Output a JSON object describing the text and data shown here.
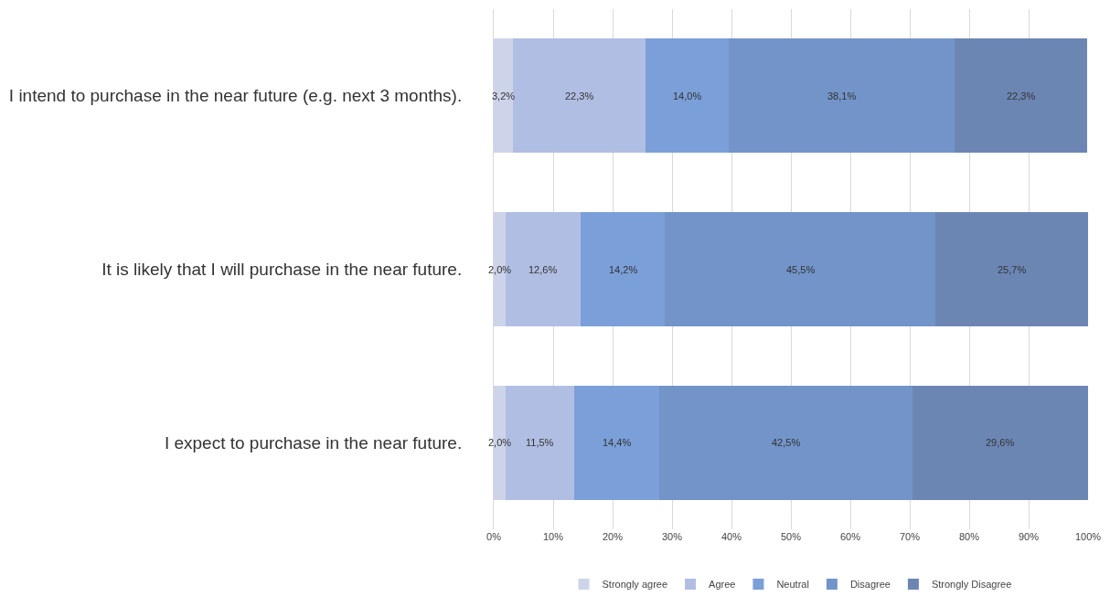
{
  "chart_data": {
    "type": "bar",
    "orientation": "horizontal",
    "stacked": true,
    "categories": [
      "I intend to purchase in the near future (e.g. next 3 months).",
      "It is likely that I will purchase in the near future.",
      "I expect to purchase in the near future."
    ],
    "series": [
      {
        "name": "Strongly agree",
        "color": "#cdd4ea",
        "values": [
          3.2,
          2.0,
          2.0
        ],
        "value_labels": [
          "3,2%",
          "2,0%",
          "2,0%"
        ]
      },
      {
        "name": "Agree",
        "color": "#b1bee3",
        "values": [
          22.3,
          12.6,
          11.5
        ],
        "value_labels": [
          "22,3%",
          "12,6%",
          "11,5%"
        ]
      },
      {
        "name": "Neutral",
        "color": "#7b9fd8",
        "values": [
          14.0,
          14.2,
          14.4
        ],
        "value_labels": [
          "14,0%",
          "14,2%",
          "14,4%"
        ]
      },
      {
        "name": "Disagree",
        "color": "#7294c9",
        "values": [
          38.1,
          45.5,
          42.5
        ],
        "value_labels": [
          "38,1%",
          "45,5%",
          "42,5%"
        ]
      },
      {
        "name": "Strongly Disagree",
        "color": "#6c86b4",
        "values": [
          22.3,
          25.7,
          29.6
        ],
        "value_labels": [
          "22,3%",
          "25,7%",
          "29,6%"
        ]
      }
    ],
    "xlim": [
      0,
      100
    ],
    "xticks": [
      {
        "value": 0,
        "label": "0%"
      },
      {
        "value": 10,
        "label": "10%"
      },
      {
        "value": 20,
        "label": "20%"
      },
      {
        "value": 30,
        "label": "30%"
      },
      {
        "value": 40,
        "label": "40%"
      },
      {
        "value": 50,
        "label": "50%"
      },
      {
        "value": 60,
        "label": "60%"
      },
      {
        "value": 70,
        "label": "70%"
      },
      {
        "value": 80,
        "label": "80%"
      },
      {
        "value": 90,
        "label": "90%"
      },
      {
        "value": 100,
        "label": "100%"
      }
    ],
    "grid": "x",
    "legend": "bottom"
  }
}
